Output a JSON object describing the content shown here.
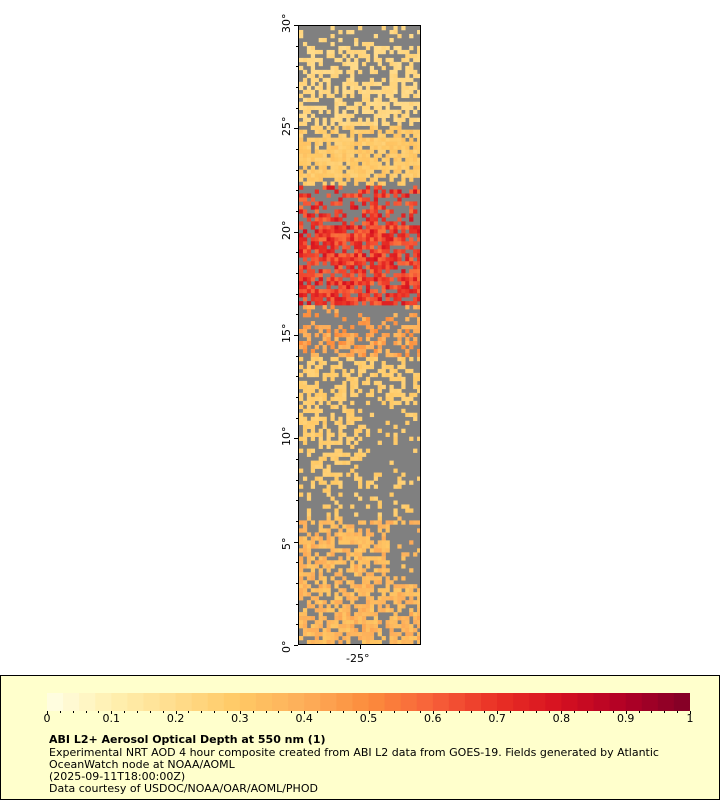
{
  "map": {
    "lat_ticks": [
      "0°",
      "5°",
      "10°",
      "15°",
      "20°",
      "25°",
      "30°"
    ],
    "lon_ticks": [
      "-25°"
    ],
    "lat_range": [
      0,
      30
    ],
    "colors": {
      "land_or_nodata": "#808080",
      "cloud": "#b8b8c0"
    }
  },
  "legend": {
    "title": "ABI L2+ Aerosol Optical Depth at 550 nm (1)",
    "line1": "Experimental NRT AOD 4 hour composite created from ABI L2 data from GOES-19. Fields generated by Atlantic",
    "line2": "OceanWatch node at NOAA/AOML",
    "line3": "(2025-09-11T18:00:00Z)",
    "line4": "Data courtesy of USDOC/NOAA/OAR/AOML/PHOD",
    "colorbar_labels": [
      "0",
      "0.1",
      "0.2",
      "0.3",
      "0.4",
      "0.5",
      "0.6",
      "0.7",
      "0.8",
      "0.9",
      "1"
    ],
    "colorbar_range": [
      0,
      1
    ],
    "colorbar_stops": [
      "#ffffe6",
      "#fff0b0",
      "#ffdc8c",
      "#ffc864",
      "#fdae5a",
      "#fc8c3c",
      "#f7603a",
      "#e93025",
      "#d51020",
      "#b00026",
      "#800026"
    ]
  }
}
